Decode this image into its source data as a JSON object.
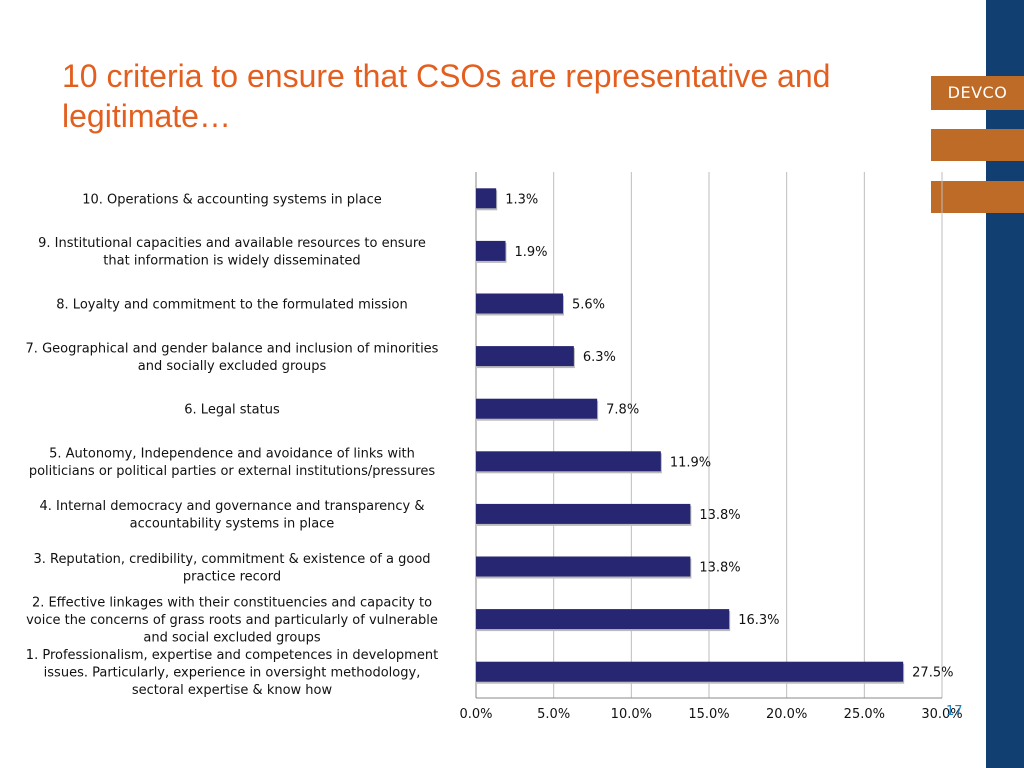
{
  "slide": {
    "title": "10 criteria to ensure that CSOs are representative and legitimate…",
    "logo_text": "DEVCO",
    "page_number": "17"
  },
  "colors": {
    "title": "#e35f1f",
    "bar": "#262672",
    "band": "#123f72",
    "logo": "#be6b27"
  },
  "chart_data": {
    "type": "bar",
    "orientation": "horizontal",
    "categories": [
      "10. Operations & accounting systems in place",
      "9. Institutional capacities and available resources to ensure that information is widely disseminated",
      "8. Loyalty and commitment to the formulated mission",
      "7. Geographical and gender balance and inclusion of minorities and socially excluded groups",
      "6. Legal status",
      "5. Autonomy, Independence and avoidance of links with politicians or political parties or external institutions/pressures",
      "4. Internal democracy and governance and transparency & accountability systems in place",
      "3. Reputation, credibility, commitment & existence of a good practice record",
      "2. Effective linkages with their constituencies and capacity to voice the concerns of grass roots and particularly of vulnerable and social excluded groups",
      "1. Professionalism, expertise and competences in development issues. Particularly, experience in oversight methodology, sectoral expertise & know how"
    ],
    "category_lines": [
      [
        "10. Operations & accounting systems in place"
      ],
      [
        "9. Institutional capacities and available resources to ensure",
        "that information is widely disseminated"
      ],
      [
        "8. Loyalty and commitment to the formulated mission"
      ],
      [
        "7. Geographical and gender balance and inclusion of minorities",
        "and socially excluded groups"
      ],
      [
        "6. Legal status"
      ],
      [
        "5. Autonomy, Independence and avoidance of links with",
        "politicians or political parties or external institutions/pressures"
      ],
      [
        "4. Internal democracy and governance and transparency &",
        "accountability systems in place"
      ],
      [
        "3. Reputation, credibility, commitment & existence of a good",
        "practice record"
      ],
      [
        "2. Effective linkages with their constituencies and capacity to",
        "voice the concerns of grass roots and particularly of vulnerable",
        "and social excluded groups"
      ],
      [
        "1. Professionalism, expertise and competences in development",
        "issues. Particularly, experience in oversight methodology,",
        "sectoral expertise & know how"
      ]
    ],
    "values": [
      1.3,
      1.9,
      5.6,
      6.3,
      7.8,
      11.9,
      13.8,
      13.8,
      16.3,
      27.5
    ],
    "value_labels": [
      "1.3%",
      "1.9%",
      "5.6%",
      "6.3%",
      "7.8%",
      "11.9%",
      "13.8%",
      "13.8%",
      "16.3%",
      "27.5%"
    ],
    "xlim": [
      0,
      30
    ],
    "xticks": [
      0,
      5,
      10,
      15,
      20,
      25,
      30
    ],
    "xtick_labels": [
      "0.0%",
      "5.0%",
      "10.0%",
      "15.0%",
      "20.0%",
      "25.0%",
      "30.0%"
    ],
    "grid": true
  }
}
